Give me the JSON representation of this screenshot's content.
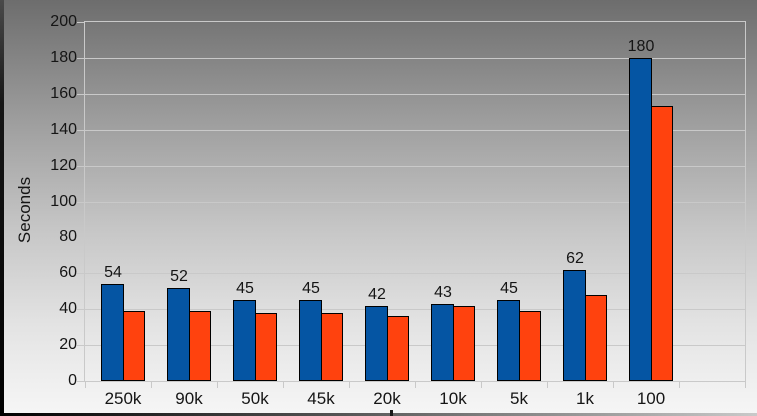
{
  "chart_data": {
    "type": "bar",
    "title": "",
    "xlabel": "",
    "ylabel": "Seconds",
    "ylim": [
      0,
      200
    ],
    "ytick_step": 20,
    "grid": true,
    "legend": "none",
    "categories": [
      "250k",
      "90k",
      "50k",
      "45k",
      "20k",
      "10k",
      "5k",
      "1k",
      "100"
    ],
    "trailing_empty_slots": 1,
    "series": [
      {
        "name": "series-1-blue",
        "color": "#0555a3",
        "values": [
          54,
          52,
          45,
          45,
          42,
          43,
          45,
          62,
          180
        ],
        "data_labels": [
          "54",
          "52",
          "45",
          "45",
          "42",
          "43",
          "45",
          "62",
          "180"
        ]
      },
      {
        "name": "series-2-orange",
        "color": "#ff420e",
        "values": [
          39,
          39,
          38,
          38,
          36,
          42,
          39,
          48,
          153
        ],
        "data_labels": []
      }
    ]
  },
  "axis": {
    "y_tick_labels": [
      "0",
      "20",
      "40",
      "60",
      "80",
      "100",
      "120",
      "140",
      "160",
      "180",
      "200"
    ]
  },
  "colors": {
    "background_top": "#6d6d6d",
    "background_bottom": "#f6f6f6",
    "gridline": "#c9c9c9",
    "bar_border": "#000000",
    "text": "#151515"
  }
}
